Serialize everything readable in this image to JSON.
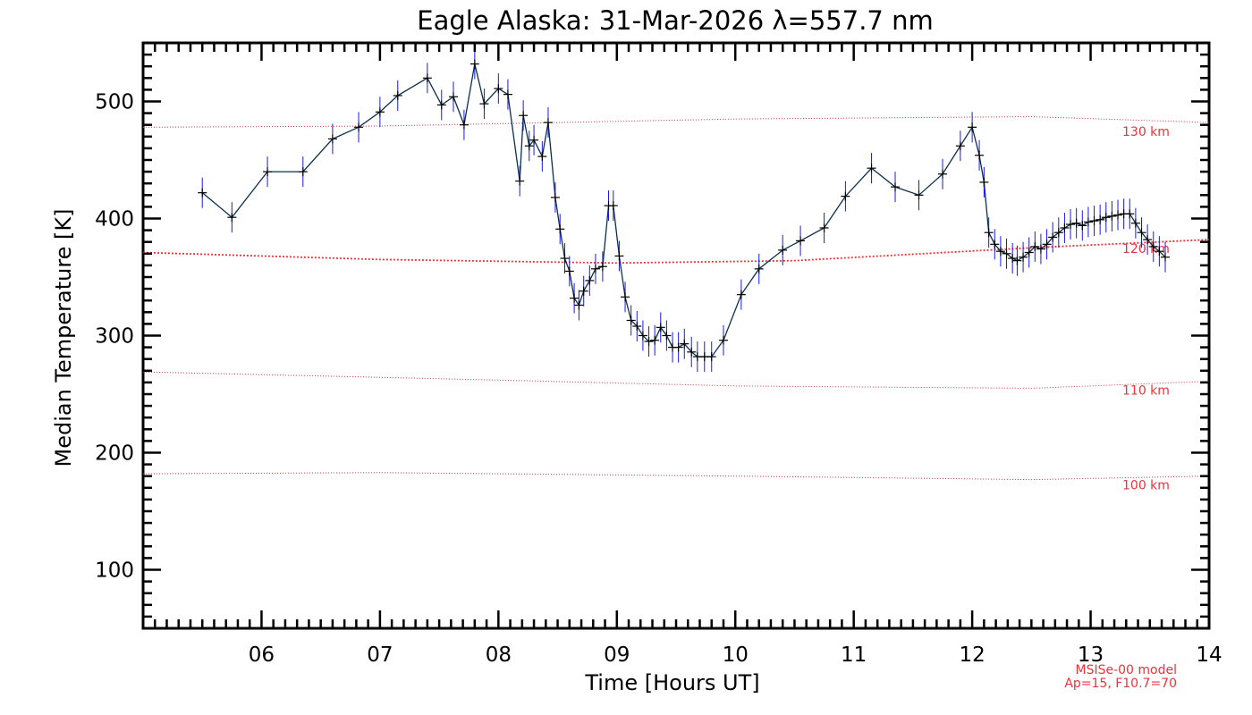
{
  "chart_data": {
    "type": "line",
    "title": "Eagle Alaska: 31-Mar-2026 λ=557.7 nm",
    "xlabel": "Time [Hours UT]",
    "ylabel": "Median Temperature [K]",
    "xlim": [
      5.0,
      14.0
    ],
    "ylim": [
      50,
      550
    ],
    "x_ticks": [
      6,
      7,
      8,
      9,
      10,
      11,
      12,
      13,
      14
    ],
    "x_tick_labels": [
      "06",
      "07",
      "08",
      "09",
      "10",
      "11",
      "12",
      "13",
      "14"
    ],
    "y_ticks": [
      100,
      200,
      300,
      400,
      500
    ],
    "y_tick_labels": [
      "100",
      "200",
      "300",
      "400",
      "500"
    ],
    "series": [
      {
        "name": "Median Temperature",
        "color": "#0b2f4a",
        "error_color": "#1a1adf",
        "x": [
          5.5,
          5.75,
          6.05,
          6.35,
          6.6,
          6.82,
          7.0,
          7.15,
          7.4,
          7.52,
          7.62,
          7.71,
          7.8,
          7.88,
          8.0,
          8.08,
          8.18,
          8.21,
          8.26,
          8.3,
          8.37,
          8.42,
          8.48,
          8.52,
          8.56,
          8.6,
          8.64,
          8.68,
          8.72,
          8.77,
          8.82,
          8.88,
          8.93,
          8.97,
          9.02,
          9.07,
          9.12,
          9.17,
          9.22,
          9.27,
          9.32,
          9.37,
          9.42,
          9.47,
          9.52,
          9.57,
          9.63,
          9.68,
          9.74,
          9.8,
          9.9,
          10.05,
          10.2,
          10.4,
          10.55,
          10.75,
          10.93,
          11.15,
          11.35,
          11.55,
          11.75,
          11.9,
          12.0,
          12.06,
          12.1,
          12.14,
          12.19,
          12.24,
          12.29,
          12.34,
          12.38,
          12.43,
          12.48,
          12.53,
          12.58,
          12.63,
          12.68,
          12.73,
          12.78,
          12.83,
          12.88,
          12.93,
          12.98,
          13.03,
          13.08,
          13.13,
          13.18,
          13.23,
          13.28,
          13.33,
          13.38,
          13.43,
          13.48,
          13.53,
          13.58,
          13.63
        ],
        "y": [
          422,
          401,
          440,
          440,
          468,
          478,
          491,
          505,
          520,
          497,
          504,
          480,
          532,
          498,
          511,
          506,
          432,
          488,
          462,
          467,
          453,
          482,
          418,
          391,
          366,
          355,
          332,
          326,
          338,
          347,
          357,
          359,
          411,
          411,
          368,
          333,
          313,
          308,
          300,
          295,
          296,
          307,
          300,
          290,
          290,
          293,
          286,
          282,
          282,
          282,
          296,
          335,
          357,
          373,
          381,
          392,
          419,
          443,
          427,
          420,
          438,
          462,
          478,
          454,
          431,
          388,
          378,
          372,
          370,
          366,
          364,
          367,
          371,
          376,
          374,
          378,
          384,
          388,
          392,
          395,
          396,
          394,
          397,
          398,
          399,
          401,
          402,
          403,
          404,
          404,
          396,
          388,
          382,
          376,
          372,
          367
        ]
      }
    ],
    "model_curves": [
      {
        "name": "130 km",
        "x": [
          5.0,
          7.0,
          10.0,
          12.5,
          14.0
        ],
        "y": [
          478,
          479,
          485,
          487,
          482
        ]
      },
      {
        "name": "120 km",
        "x": [
          5.0,
          7.0,
          9.0,
          10.5,
          12.5,
          14.0
        ],
        "y": [
          371,
          365,
          362,
          364,
          375,
          382
        ]
      },
      {
        "name": "110 km",
        "x": [
          5.0,
          8.0,
          10.0,
          12.5,
          14.0
        ],
        "y": [
          269,
          262,
          257,
          255,
          261
        ]
      },
      {
        "name": "100 km",
        "x": [
          5.0,
          7.0,
          10.0,
          12.5,
          14.0
        ],
        "y": [
          182,
          183,
          180,
          177,
          180
        ]
      }
    ],
    "model_label_lines": [
      "MSISe-00 model",
      "Ap=15, F10.7=70"
    ],
    "model_color": "#e8343a"
  }
}
